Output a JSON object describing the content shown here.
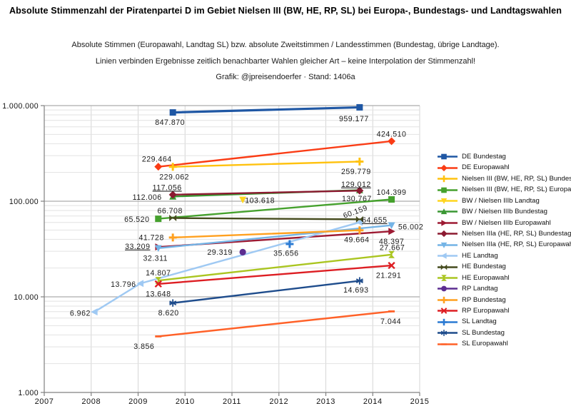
{
  "meta": {
    "title": "Absolute Stimmenzahl der Piratenpartei D im Gebiet Nielsen III (BW, HE, RP, SL) bei Europa-, Bundestags- und Landtagswahlen",
    "subtitle1": "Absolute Stimmen (Europawahl, Landtag SL) bzw. absolute Zweitstimmen / Landesstimmen (Bundestag, übrige Landtage).",
    "subtitle2": "Linien verbinden Ergebnisse zeitlich benachbarter Wahlen gleicher Art – keine Interpolation der Stimmenzahl!",
    "subtitle3": "Grafik: @jpreisendoerfer · Stand: 1406a"
  },
  "chart_data": {
    "type": "line",
    "x_axis": {
      "min": 2007,
      "max": 2015,
      "ticks": [
        2007,
        2008,
        2009,
        2010,
        2011,
        2012,
        2013,
        2014,
        2015
      ]
    },
    "y_axis": {
      "scale": "log",
      "min": 1000,
      "max": 1000000,
      "ticks": [
        {
          "value": 1000000,
          "label": "1.000.000"
        },
        {
          "value": 100000,
          "label": "100.000"
        },
        {
          "value": 10000,
          "label": "10.000"
        },
        {
          "value": 1000,
          "label": "1.000"
        }
      ]
    },
    "grid": true,
    "legend_position": "right",
    "series": [
      {
        "name": "DE Bundestag",
        "color": "#1F57A4",
        "marker": "square",
        "line_width": 3.2,
        "points": [
          {
            "x": 2009.74,
            "y": 847870,
            "label": "847.870",
            "dx": -4,
            "dy": 14
          },
          {
            "x": 2013.72,
            "y": 959177,
            "label": "959.177",
            "dx": -8,
            "dy": 16
          }
        ]
      },
      {
        "name": "DE Europawahl",
        "color": "#FA3C15",
        "marker": "diamond",
        "line_width": 2.4,
        "points": [
          {
            "x": 2009.43,
            "y": 229464,
            "label": "229.464",
            "dx": -2,
            "dy": -11
          },
          {
            "x": 2014.4,
            "y": 424510,
            "label": "424.510",
            "dx": 0,
            "dy": -10
          }
        ]
      },
      {
        "name": "Nielsen III (BW, HE, RP, SL) Bundestag",
        "color": "#FFC20F",
        "marker": "plus",
        "line_width": 2.4,
        "points": [
          {
            "x": 2009.74,
            "y": 229062,
            "label": "229.062",
            "dx": 2,
            "dy": 14
          },
          {
            "x": 2013.72,
            "y": 259779,
            "label": "259.779",
            "dx": -5,
            "dy": 14
          }
        ]
      },
      {
        "name": "Nielsen III (BW, HE, RP, SL) Europawahl",
        "color": "#45A12D",
        "marker": "square",
        "line_width": 2.4,
        "points": [
          {
            "x": 2009.43,
            "y": 65520,
            "label": "65.520",
            "dx": -30,
            "dy": 1
          },
          {
            "x": 2014.4,
            "y": 104399,
            "label": "104.399",
            "dx": 0,
            "dy": -10
          }
        ]
      },
      {
        "name": "BW / Nielsen IIIb Landtag",
        "color": "#FFD51F",
        "marker": "tri-down",
        "line_width": 2.4,
        "points": [
          {
            "x": 2011.23,
            "y": 103618,
            "label": "103.618",
            "dx": 24,
            "dy": 1
          }
        ]
      },
      {
        "name": "BW / Nielsen IIIb Bundestag",
        "color": "#3A9733",
        "marker": "tri-up",
        "line_width": 2.4,
        "points": [
          {
            "x": 2009.74,
            "y": 112006,
            "label": "112.006",
            "dx": -36,
            "dy": 1
          },
          {
            "x": 2013.72,
            "y": 130767,
            "label": "130.767",
            "dx": -4,
            "dy": 12
          }
        ]
      },
      {
        "name": "BW / Nielsen IIIb Europawahl",
        "color": "#9D1A33",
        "marker": "tri-right",
        "line_width": 2.4,
        "points": [
          {
            "x": 2009.43,
            "y": 33209,
            "label": "33.209",
            "dx": -29,
            "dy": -1,
            "u": true
          },
          {
            "x": 2014.4,
            "y": 48397,
            "label": "48.397",
            "dx": 0,
            "dy": 14
          }
        ]
      },
      {
        "name": "Nielsen IIIa (HE, RP, SL) Bundestag",
        "color": "#8C1A31",
        "marker": "diamond",
        "line_width": 2.4,
        "points": [
          {
            "x": 2009.74,
            "y": 117056,
            "label": "117.056",
            "dx": -8,
            "dy": -10,
            "u": true
          },
          {
            "x": 2013.72,
            "y": 129012,
            "label": "129.012",
            "dx": -5,
            "dy": -9,
            "u": true
          }
        ]
      },
      {
        "name": "Nielsen IIIa (HE, RP, SL) Europawahl",
        "color": "#74B4E6",
        "marker": "tri-down",
        "line_width": 2.4,
        "points": [
          {
            "x": 2009.43,
            "y": 32311,
            "label": "32.311",
            "dx": -4,
            "dy": 14
          },
          {
            "x": 2014.4,
            "y": 56002,
            "label": "56.002",
            "dx": 27,
            "dy": 2
          }
        ]
      },
      {
        "name": "HE Landtag",
        "color": "#9FC9F3",
        "marker": "tri-left",
        "line_width": 2.4,
        "points": [
          {
            "x": 2008.07,
            "y": 6962,
            "label": "6.962",
            "dx": -20,
            "dy": 2
          },
          {
            "x": 2009.05,
            "y": 13796,
            "label": "13.796",
            "dx": -24,
            "dy": 1
          },
          {
            "x": 2013.72,
            "y": 60159,
            "label": "60.159",
            "dx": -6,
            "dy": -15,
            "rot": -20
          }
        ]
      },
      {
        "name": "HE Bundestag",
        "color": "#454B1E",
        "marker": "bowtie-h",
        "line_width": 2.4,
        "points": [
          {
            "x": 2009.74,
            "y": 66708,
            "label": "66.708",
            "dx": -4,
            "dy": -10
          },
          {
            "x": 2013.72,
            "y": 64655,
            "label": "64.655",
            "dx": 21,
            "dy": 1,
            "u": true
          }
        ]
      },
      {
        "name": "HE Europawahl",
        "color": "#AAC520",
        "marker": "bowtie-v",
        "line_width": 2.4,
        "points": [
          {
            "x": 2009.43,
            "y": 14807,
            "label": "14.807",
            "dx": 0,
            "dy": -11
          },
          {
            "x": 2014.4,
            "y": 27667,
            "label": "27.667",
            "dx": 1,
            "dy": -10
          }
        ]
      },
      {
        "name": "RP Landtag",
        "color": "#5C2D90",
        "marker": "circle",
        "line_width": 2.4,
        "points": [
          {
            "x": 2011.23,
            "y": 29319,
            "label": "29.319",
            "dx": -32,
            "dy": 0
          }
        ]
      },
      {
        "name": "RP Bundestag",
        "color": "#FFA01F",
        "marker": "plus",
        "line_width": 2.4,
        "points": [
          {
            "x": 2009.74,
            "y": 41728,
            "label": "41.728",
            "dx": -30,
            "dy": 0
          },
          {
            "x": 2013.72,
            "y": 49664,
            "label": "49.664",
            "dx": -4,
            "dy": 13
          }
        ]
      },
      {
        "name": "RP Europawahl",
        "color": "#DD1E23",
        "marker": "x",
        "line_width": 2.4,
        "points": [
          {
            "x": 2009.43,
            "y": 13648,
            "label": "13.648",
            "dx": 0,
            "dy": 14
          },
          {
            "x": 2014.4,
            "y": 21291,
            "label": "21.291",
            "dx": -4,
            "dy": 14
          }
        ]
      },
      {
        "name": "SL Landtag",
        "color": "#2C7BD3",
        "marker": "plus",
        "line_width": 2.4,
        "points": [
          {
            "x": 2012.23,
            "y": 35656,
            "label": "35.656",
            "dx": -5,
            "dy": 13
          }
        ]
      },
      {
        "name": "SL Bundestag",
        "color": "#1E4C8C",
        "marker": "asterisk",
        "line_width": 2.4,
        "points": [
          {
            "x": 2009.74,
            "y": 8620,
            "label": "8.620",
            "dx": -6,
            "dy": 14
          },
          {
            "x": 2013.72,
            "y": 14693,
            "label": "14.693",
            "dx": -5,
            "dy": 13
          }
        ]
      },
      {
        "name": "SL Europawahl",
        "color": "#FF6128",
        "marker": "dash",
        "line_width": 2.4,
        "points": [
          {
            "x": 2009.43,
            "y": 3856,
            "label": "3.856",
            "dx": -20,
            "dy": 14
          },
          {
            "x": 2014.4,
            "y": 7044,
            "label": "7.044",
            "dx": -1,
            "dy": 14
          }
        ]
      }
    ]
  }
}
